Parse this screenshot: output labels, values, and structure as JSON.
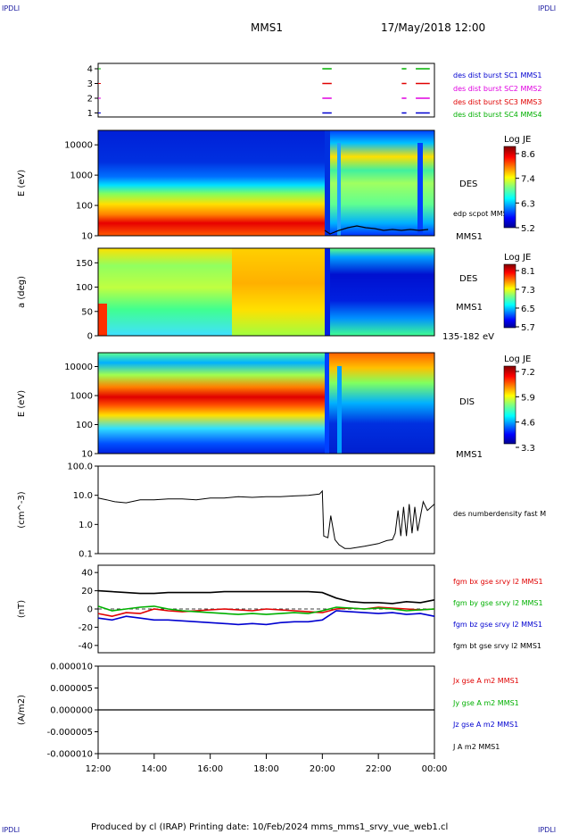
{
  "corner_labels": {
    "tl": "IPDLI",
    "tr": "IPDLI",
    "bl": "IPDLI",
    "br": "IPDLI"
  },
  "header": {
    "spacecraft": "MMS1",
    "date": "17/May/2018 12:00"
  },
  "footer": {
    "text": "Produced by cl (IRAP)   Printing date: 10/Feb/2024   mms_mms1_srvy_vue_web1.cl"
  },
  "time_axis": {
    "start": "12:00",
    "end": "00:00",
    "tick_labels": [
      "12:00",
      "14:00",
      "16:00",
      "18:00",
      "20:00",
      "22:00",
      "00:00"
    ]
  },
  "colors": {
    "c_red": "#e00000",
    "c_green": "#00b000",
    "c_blue": "#0000d0",
    "c_magenta": "#e000e0",
    "c_black": "#000000"
  },
  "chart_data": [
    {
      "type": "line",
      "panel": "burst-availability",
      "ylim": [
        0.5,
        4.5
      ],
      "y_tick_labels": [
        "4",
        "3",
        "2",
        "1"
      ],
      "legend": [
        "des dist burst SC1 MMS1",
        "des dist burst SC2 MMS2",
        "des dist burst SC3 MMS3",
        "des dist burst SC4 MMS4"
      ],
      "legend_colors": [
        "#0000d0",
        "#e000e0",
        "#e00000",
        "#00b000"
      ],
      "series": [
        {
          "level": 1,
          "color": "#0000d0",
          "intervals": [
            [
              "20:00",
              "20:20"
            ],
            [
              "22:50",
              "23:00"
            ],
            [
              "23:20",
              "23:50"
            ]
          ]
        },
        {
          "level": 2,
          "color": "#e000e0",
          "intervals": [
            [
              "20:00",
              "20:20"
            ],
            [
              "22:50",
              "23:00"
            ],
            [
              "23:20",
              "23:50"
            ]
          ]
        },
        {
          "level": 3,
          "color": "#e00000",
          "intervals": [
            [
              "20:00",
              "20:20"
            ],
            [
              "22:50",
              "23:00"
            ],
            [
              "23:20",
              "23:50"
            ]
          ]
        },
        {
          "level": 4,
          "color": "#00b000",
          "intervals": [
            [
              "20:00",
              "20:20"
            ],
            [
              "22:50",
              "23:00"
            ],
            [
              "23:20",
              "23:50"
            ]
          ]
        }
      ]
    },
    {
      "type": "heatmap",
      "panel": "des-energy",
      "ylabel": "E (eV)",
      "yscale": "log",
      "ylim": [
        10,
        30000
      ],
      "y_tick_labels": [
        "10000",
        "1000",
        "100",
        "10"
      ],
      "instrument_label": "DES",
      "bottom_label": "MMS1",
      "overlay_label": "edp scpot MMS1",
      "colorbar": {
        "title": "Log JE",
        "tick_labels": [
          "8.6",
          "7.4",
          "6.3",
          "5.2"
        ],
        "range": [
          5.2,
          8.6
        ]
      }
    },
    {
      "type": "heatmap",
      "panel": "des-pitch-angle",
      "ylabel": "a (deg)",
      "ylim": [
        0,
        180
      ],
      "y_tick_labels": [
        "150",
        "100",
        "50",
        "0"
      ],
      "instrument_label": "DES",
      "side_label": "MMS1",
      "energy_band": "135-182 eV",
      "colorbar": {
        "title": "Log JE",
        "tick_labels": [
          "8.1",
          "7.3",
          "6.5",
          "5.7"
        ],
        "range": [
          5.7,
          8.1
        ]
      }
    },
    {
      "type": "heatmap",
      "panel": "dis-energy",
      "ylabel": "E (eV)",
      "yscale": "log",
      "ylim": [
        10,
        30000
      ],
      "y_tick_labels": [
        "10000",
        "1000",
        "100",
        "10"
      ],
      "instrument_label": "DIS",
      "bottom_label": "MMS1",
      "colorbar": {
        "title": "Log JE",
        "tick_labels": [
          "7.2",
          "5.9",
          "4.6",
          "3.3"
        ],
        "range": [
          3.3,
          7.2
        ]
      }
    },
    {
      "type": "line",
      "panel": "des-density",
      "ylabel": "(cm^-3)",
      "yscale": "log",
      "ylim": [
        0.1,
        100
      ],
      "y_tick_labels": [
        "100.0",
        "10.0",
        "1.0",
        "0.1"
      ],
      "legend": [
        "des numberdensity fast M"
      ],
      "series": [
        {
          "color": "#000000",
          "x_hours": [
            0,
            0.3,
            0.6,
            1.0,
            1.5,
            2.0,
            2.5,
            3.0,
            3.5,
            4.0,
            4.5,
            5.0,
            5.5,
            6.0,
            6.5,
            7.0,
            7.5,
            7.9,
            8.0,
            8.05,
            8.2,
            8.3,
            8.45,
            8.6,
            8.8,
            9.0,
            9.5,
            10.0,
            10.3,
            10.5,
            10.6,
            10.7,
            10.8,
            10.9,
            11.0,
            11.1,
            11.2,
            11.3,
            11.4,
            11.6,
            11.75,
            12.0
          ],
          "y": [
            8,
            7,
            6,
            5.5,
            7,
            7,
            7.5,
            7.5,
            7,
            8,
            8,
            9,
            8.5,
            9,
            9,
            9.5,
            10,
            11,
            14,
            0.4,
            0.35,
            2,
            0.3,
            0.2,
            0.15,
            0.15,
            0.18,
            0.22,
            0.28,
            0.3,
            0.5,
            3,
            0.4,
            4,
            0.4,
            5,
            0.5,
            4,
            0.6,
            6,
            3,
            5
          ]
        }
      ]
    },
    {
      "type": "line",
      "panel": "fgm-b",
      "ylabel": "(nT)",
      "ylim": [
        -48,
        48
      ],
      "y_tick_labels": [
        "40",
        "20",
        "0",
        "-20",
        "-40"
      ],
      "legend": [
        "fgm bx gse srvy l2 MMS1",
        "fgm by gse srvy l2 MMS1",
        "fgm bz gse srvy l2 MMS1",
        "fgm bt gse srvy l2 MMS1"
      ],
      "legend_colors": [
        "#e00000",
        "#00b000",
        "#0000d0",
        "#000000"
      ],
      "series": [
        {
          "name": "fgm bx gse srvy l2 MMS1",
          "color": "#e00000",
          "x_hours": [
            0,
            0.5,
            1,
            1.5,
            2,
            2.5,
            3,
            3.5,
            4,
            4.5,
            5,
            5.5,
            6,
            6.5,
            7,
            7.5,
            8,
            8.5,
            9,
            9.5,
            10,
            10.5,
            11,
            11.5,
            12
          ],
          "y": [
            -5,
            -8,
            -4,
            -5,
            0,
            -2,
            -3,
            -2,
            -1,
            0,
            -1,
            -2,
            0,
            -1,
            -2,
            -3,
            -4,
            0,
            1,
            0,
            2,
            1,
            0,
            -1,
            0
          ]
        },
        {
          "name": "fgm by gse srvy l2 MMS1",
          "color": "#00b000",
          "x_hours": [
            0,
            0.5,
            1,
            1.5,
            2,
            2.5,
            3,
            3.5,
            4,
            4.5,
            5,
            5.5,
            6,
            6.5,
            7,
            7.5,
            8,
            8.5,
            9,
            9.5,
            10,
            10.5,
            11,
            11.5,
            12
          ],
          "y": [
            3,
            -2,
            0,
            2,
            3,
            0,
            -2,
            -3,
            -4,
            -5,
            -6,
            -5,
            -6,
            -5,
            -4,
            -5,
            -2,
            2,
            1,
            0,
            1,
            0,
            -2,
            -1,
            0
          ]
        },
        {
          "name": "fgm bz gse srvy l2 MMS1",
          "color": "#0000d0",
          "x_hours": [
            0,
            0.5,
            1,
            1.5,
            2,
            2.5,
            3,
            3.5,
            4,
            4.5,
            5,
            5.5,
            6,
            6.5,
            7,
            7.5,
            8,
            8.5,
            9,
            9.5,
            10,
            10.5,
            11,
            11.5,
            12
          ],
          "y": [
            -10,
            -12,
            -8,
            -10,
            -12,
            -12,
            -13,
            -14,
            -15,
            -16,
            -17,
            -16,
            -17,
            -15,
            -14,
            -14,
            -12,
            -2,
            -3,
            -4,
            -5,
            -4,
            -6,
            -5,
            -8
          ]
        },
        {
          "name": "fgm bt gse srvy l2 MMS1",
          "color": "#000000",
          "x_hours": [
            0,
            0.5,
            1,
            1.5,
            2,
            2.5,
            3,
            3.5,
            4,
            4.5,
            5,
            5.5,
            6,
            6.5,
            7,
            7.5,
            8,
            8.5,
            9,
            9.5,
            10,
            10.5,
            11,
            11.5,
            12
          ],
          "y": [
            20,
            19,
            18,
            17,
            17,
            18,
            18,
            18,
            18,
            19,
            19,
            19,
            19,
            19,
            19,
            19,
            18,
            12,
            8,
            7,
            7,
            6,
            8,
            7,
            10
          ]
        }
      ]
    },
    {
      "type": "line",
      "panel": "curlometer-j",
      "ylabel": "(A/m2)",
      "ylim": [
        -1e-05,
        1e-05
      ],
      "y_tick_labels": [
        "0.000010",
        "0.000005",
        "0.000000",
        "-0.000005",
        "-0.000010"
      ],
      "legend": [
        "Jx gse A m2 MMS1",
        "Jy gse A m2 MMS1",
        "Jz gse A m2 MMS1",
        "J A m2 MMS1"
      ],
      "legend_colors": [
        "#e00000",
        "#00b000",
        "#0000d0",
        "#000000"
      ],
      "series": [
        {
          "name": "J A m2 MMS1",
          "color": "#000000",
          "x_hours": [
            0,
            12
          ],
          "y": [
            0,
            0
          ]
        }
      ]
    }
  ]
}
